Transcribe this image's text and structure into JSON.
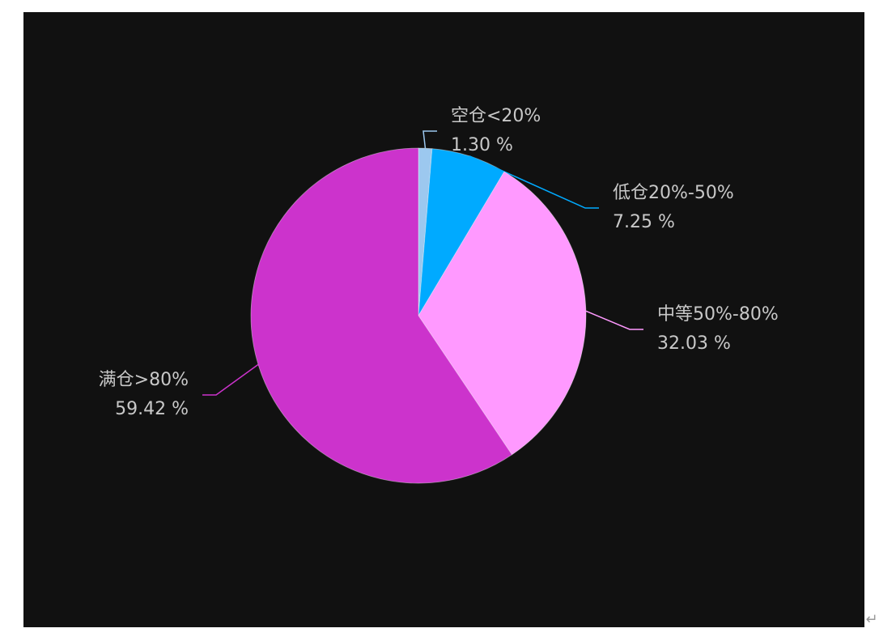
{
  "chart_data": {
    "type": "pie",
    "categories": [
      "空仓<20%",
      "低仓20%-50%",
      "中等50%-80%",
      "满仓>80%"
    ],
    "values": [
      1.3,
      7.25,
      32.03,
      59.42
    ],
    "value_labels": [
      "1.30 %",
      "7.25 %",
      "32.03 %",
      "59.42 %"
    ],
    "colors": [
      "#9cc8ef",
      "#00aaff",
      "#ff99ff",
      "#cc33cc"
    ]
  },
  "paragraph_mark": "↵"
}
